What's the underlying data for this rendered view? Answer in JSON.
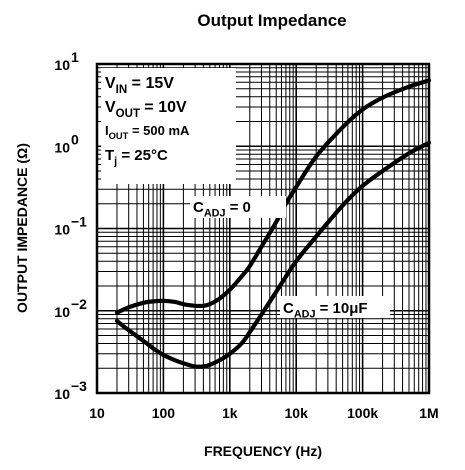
{
  "chart_data": {
    "type": "line",
    "title": "Output Impedance",
    "xlabel": "FREQUENCY (Hz)",
    "ylabel": "OUTPUT IMPEDANCE (Ω)",
    "x_scale": "log",
    "y_scale": "log",
    "xlim": [
      10,
      1000000
    ],
    "ylim": [
      0.001,
      10
    ],
    "grid": true,
    "x_ticks": [
      {
        "value": 10,
        "label": "10"
      },
      {
        "value": 100,
        "label": "100"
      },
      {
        "value": 1000,
        "label": "1k"
      },
      {
        "value": 10000,
        "label": "10k"
      },
      {
        "value": 100000,
        "label": "100k"
      },
      {
        "value": 1000000,
        "label": "1M"
      }
    ],
    "y_ticks": [
      {
        "value": 0.001,
        "base": "10",
        "exp": "−3"
      },
      {
        "value": 0.01,
        "base": "10",
        "exp": "−2"
      },
      {
        "value": 0.1,
        "base": "10",
        "exp": "−1"
      },
      {
        "value": 1,
        "base": "10",
        "exp": "0"
      },
      {
        "value": 10,
        "base": "10",
        "exp": "1"
      }
    ],
    "conditions": [
      {
        "main": "V",
        "sub": "IN",
        "rest": " = 15V"
      },
      {
        "main": "V",
        "sub": "OUT",
        "rest": " = 10V"
      },
      {
        "main": "I",
        "sub": "OUT",
        "rest": " = 500 mA"
      },
      {
        "main": "T",
        "sub": "j",
        "rest": " = 25°C"
      }
    ],
    "series": [
      {
        "name": "C_ADJ = 0",
        "label": {
          "main": "C",
          "sub": "ADJ",
          "rest": " = 0"
        },
        "x": [
          20,
          30,
          50,
          70,
          100,
          150,
          200,
          300,
          400,
          500,
          700,
          1000,
          1500,
          2000,
          3000,
          5000,
          7000,
          10000,
          20000,
          50000,
          100000,
          200000,
          500000,
          1000000
        ],
        "y": [
          0.0095,
          0.011,
          0.0125,
          0.013,
          0.0132,
          0.0128,
          0.012,
          0.0115,
          0.0115,
          0.012,
          0.014,
          0.018,
          0.026,
          0.035,
          0.06,
          0.12,
          0.2,
          0.32,
          0.75,
          1.7,
          2.8,
          3.9,
          5.3,
          6.3
        ]
      },
      {
        "name": "C_ADJ = 10μF",
        "label": {
          "main": "C",
          "sub": "ADJ",
          "rest": " = 10μF"
        },
        "x": [
          20,
          30,
          50,
          70,
          100,
          150,
          200,
          300,
          400,
          500,
          700,
          1000,
          1500,
          2000,
          3000,
          5000,
          7000,
          10000,
          20000,
          50000,
          100000,
          200000,
          500000,
          1000000
        ],
        "y": [
          0.0075,
          0.0058,
          0.0043,
          0.0035,
          0.0029,
          0.0025,
          0.0023,
          0.0021,
          0.0021,
          0.0022,
          0.0025,
          0.003,
          0.004,
          0.0055,
          0.009,
          0.017,
          0.026,
          0.04,
          0.08,
          0.19,
          0.33,
          0.5,
          0.82,
          1.1
        ]
      }
    ]
  }
}
